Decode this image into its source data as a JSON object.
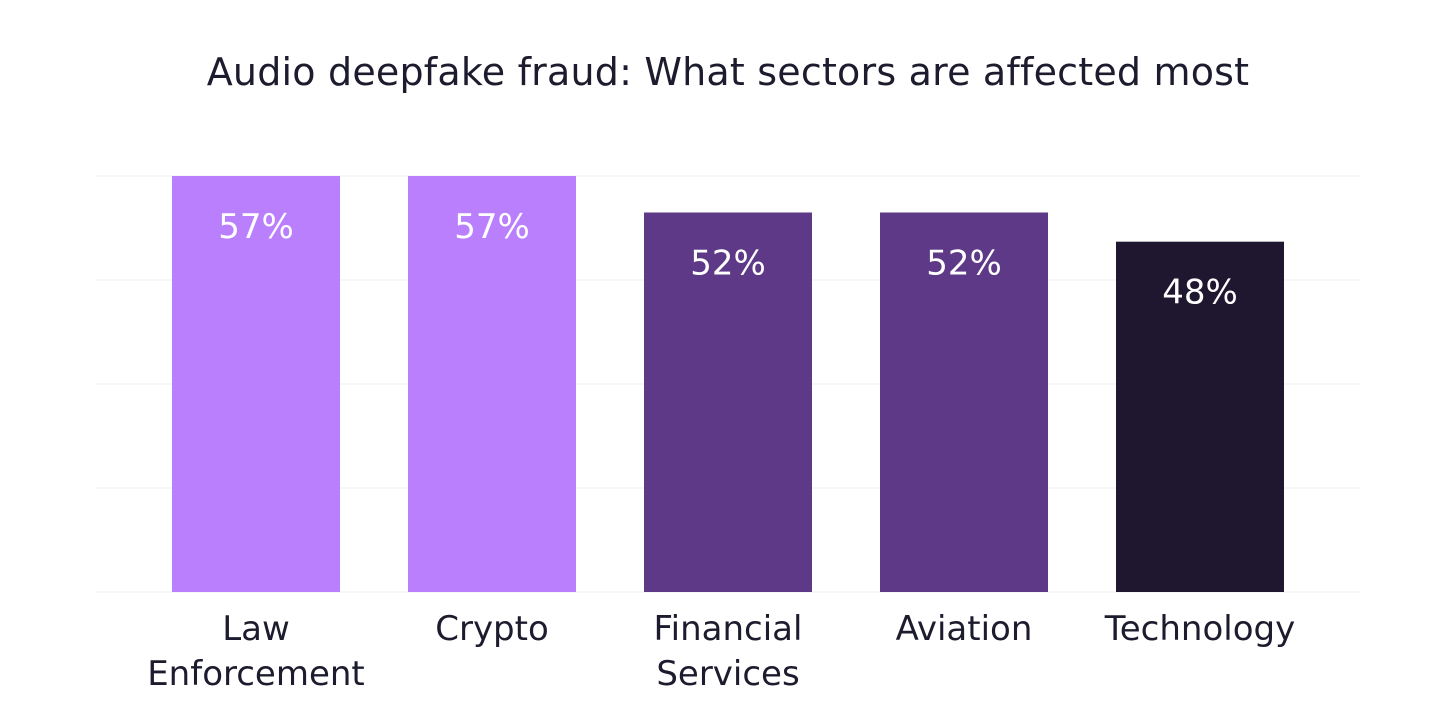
{
  "chart_data": {
    "type": "bar",
    "title": "Audio deepfake fraud: What sectors are affected most",
    "categories": [
      [
        "Law",
        "Enforcement"
      ],
      [
        "Crypto"
      ],
      [
        "Financial",
        "Services"
      ],
      [
        "Aviation"
      ],
      [
        "Technology"
      ]
    ],
    "values": [
      57,
      57,
      52,
      52,
      48
    ],
    "value_labels": [
      "57%",
      "57%",
      "52%",
      "52%",
      "48%"
    ],
    "bar_colors": [
      "#b97ffd",
      "#b97ffd",
      "#5d3987",
      "#5d3987",
      "#1f1630"
    ],
    "ylim": [
      0,
      57
    ],
    "grid": true,
    "xlabel": "",
    "ylabel": ""
  },
  "colors": {
    "text": "#1c1c2e",
    "value_text": "#ffffff",
    "grid": "#efefef"
  }
}
